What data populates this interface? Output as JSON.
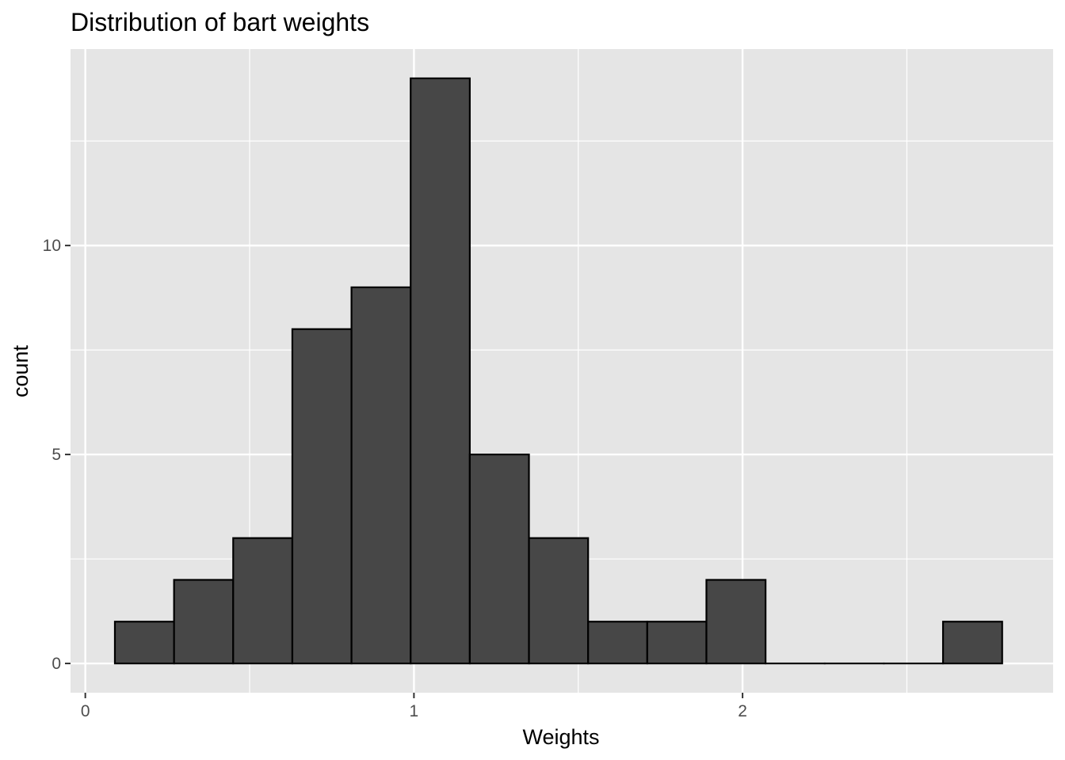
{
  "chart_data": {
    "type": "bar",
    "title": "Distribution of bart weights",
    "xlabel": "Weights",
    "ylabel": "count",
    "xlim": [
      -0.045,
      2.945
    ],
    "ylim": [
      -0.7,
      14.7
    ],
    "x_major_ticks": [
      0,
      1,
      2
    ],
    "x_minor_gridlines": [
      0.5,
      1.5,
      2.5
    ],
    "y_major_ticks": [
      0,
      5,
      10
    ],
    "y_minor_gridlines": [
      2.5,
      7.5,
      12.5
    ],
    "x_tick_labels": [
      "0",
      "1",
      "2"
    ],
    "y_tick_labels": [
      "0",
      "5",
      "10"
    ],
    "bin_edges": [
      0.09,
      0.27,
      0.45,
      0.63,
      0.81,
      0.99,
      1.17,
      1.35,
      1.53,
      1.71,
      1.89,
      2.07,
      2.25,
      2.43,
      2.61,
      2.79
    ],
    "counts": [
      1,
      2,
      3,
      8,
      9,
      14,
      5,
      3,
      1,
      1,
      2,
      0,
      0,
      0,
      1
    ],
    "grid": true,
    "colors": {
      "panel_background": "#e5e5e5",
      "gridline": "#ffffff",
      "bar_fill": "#474747",
      "bar_outline": "#000000",
      "tick_label": "#4d4d4d",
      "tick_mark": "#333333"
    }
  }
}
